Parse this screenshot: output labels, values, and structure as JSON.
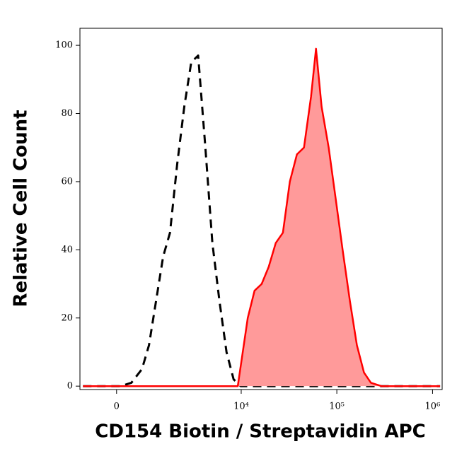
{
  "chart_data": {
    "type": "histogram-overlay",
    "xlabel": "CD154 Biotin / Streptavidin APC",
    "ylabel": "Relative Cell Count",
    "x_scale": "biexponential",
    "xlim": [
      -1000,
      1260000
    ],
    "xticks": [
      {
        "value": 0,
        "label": "0"
      },
      {
        "value": 10000,
        "label": "10⁴"
      },
      {
        "value": 100000,
        "label": "10⁵"
      },
      {
        "value": 1000000,
        "label": "10⁶"
      }
    ],
    "ylim": [
      -1,
      105
    ],
    "yticks": [
      0,
      20,
      40,
      60,
      80,
      100
    ],
    "series": [
      {
        "color": "#000000",
        "style": "dashed",
        "filled": false,
        "x": [
          -900,
          100,
          364,
          649,
          862,
          1100,
          1370,
          1670,
          2030,
          2450,
          2930,
          3490,
          4170,
          4960,
          5900,
          7000,
          8310,
          9850,
          1200000
        ],
        "values": [
          0,
          0,
          1,
          5,
          12,
          25,
          38,
          45,
          65,
          82,
          95,
          97,
          70,
          42,
          25,
          10,
          2,
          0,
          0
        ]
      },
      {
        "color": "#ff0000",
        "fill": "#ff9a9a",
        "style": "solid",
        "filled": true,
        "x": [
          -900,
          9200,
          11700,
          13800,
          16400,
          19400,
          23000,
          27300,
          32300,
          38300,
          45400,
          53800,
          60600,
          69300,
          82200,
          97300,
          115000,
          137000,
          162000,
          192000,
          227000,
          293000,
          1200000
        ],
        "values": [
          0,
          0,
          20,
          28,
          30,
          35,
          42,
          45,
          60,
          68,
          70,
          85,
          99,
          82,
          70,
          55,
          40,
          25,
          12,
          4,
          1,
          0,
          0
        ]
      }
    ]
  }
}
